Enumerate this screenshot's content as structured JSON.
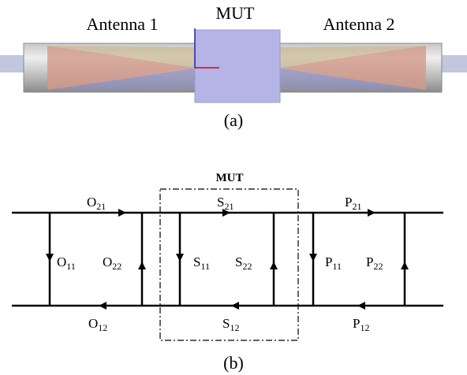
{
  "figure_a": {
    "antenna_left": "Antenna 1",
    "mut": "MUT",
    "antenna_right": "Antenna 2",
    "caption": "(a)"
  },
  "figure_b": {
    "mut": "MUT",
    "caption": "(b)",
    "labels": [
      {
        "base": "O",
        "sub": "21"
      },
      {
        "base": "S",
        "sub": "21"
      },
      {
        "base": "P",
        "sub": "21"
      },
      {
        "base": "O",
        "sub": "11"
      },
      {
        "base": "O",
        "sub": "22"
      },
      {
        "base": "S",
        "sub": "11"
      },
      {
        "base": "S",
        "sub": "22"
      },
      {
        "base": "P",
        "sub": "11"
      },
      {
        "base": "P",
        "sub": "22"
      },
      {
        "base": "O",
        "sub": "12"
      },
      {
        "base": "S",
        "sub": "12"
      },
      {
        "base": "P",
        "sub": "12"
      }
    ]
  }
}
